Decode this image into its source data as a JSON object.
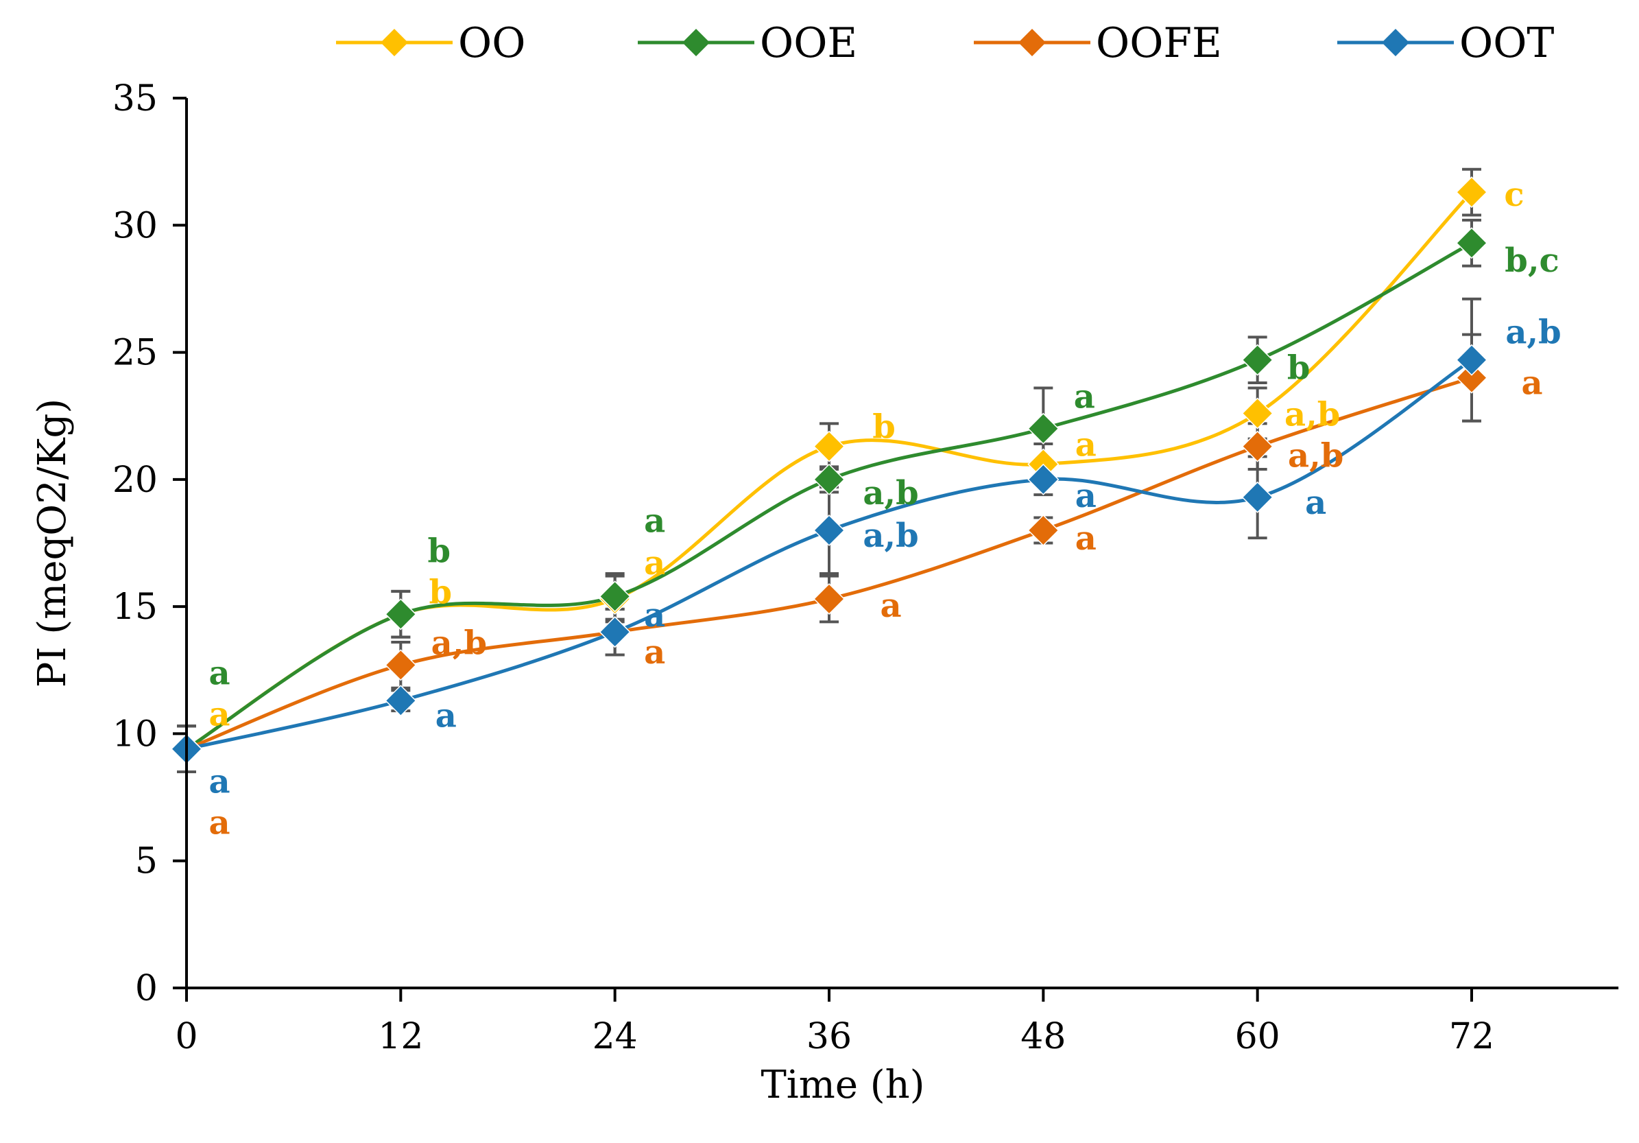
{
  "chart_data": {
    "type": "line",
    "title": "",
    "xlabel": "Time (h)",
    "ylabel": "PI (meqO2/Kg)",
    "x": [
      0,
      12,
      24,
      36,
      48,
      60,
      72
    ],
    "xlim": [
      0,
      80
    ],
    "ylim": [
      0,
      35
    ],
    "y_ticks": [
      0,
      5,
      10,
      15,
      20,
      25,
      30,
      35
    ],
    "grid": false,
    "legend_position": "top",
    "series": [
      {
        "name": "OO",
        "color": "#FFC000",
        "values": [
          9.4,
          14.7,
          15.3,
          21.3,
          20.6,
          22.6,
          31.3
        ],
        "errors": [
          0.9,
          0.9,
          0.9,
          0.9,
          0.8,
          1.0,
          0.9
        ],
        "letters": [
          "a",
          "b",
          "a",
          "b",
          "a",
          "a,b",
          "c"
        ]
      },
      {
        "name": "OOE",
        "color": "#2E8B2E",
        "values": [
          9.4,
          14.7,
          15.4,
          20.0,
          22.0,
          24.7,
          29.3
        ],
        "errors": [
          0.9,
          0.9,
          0.9,
          0.5,
          1.6,
          0.9,
          0.9
        ],
        "letters": [
          "a",
          "b",
          "a",
          "a,b",
          "a",
          "b",
          "b,c"
        ]
      },
      {
        "name": "OOFE",
        "color": "#E36C09",
        "values": [
          9.4,
          12.7,
          14.0,
          15.3,
          18.0,
          21.3,
          24.0
        ],
        "errors": [
          0.9,
          0.9,
          0.9,
          0.9,
          0.5,
          0.9,
          1.7
        ],
        "letters": [
          "a",
          "a,b",
          "a",
          "a",
          "a",
          "a,b",
          "a"
        ]
      },
      {
        "name": "OOT",
        "color": "#1F77B4",
        "values": [
          9.4,
          11.3,
          14.0,
          18.0,
          20.0,
          19.3,
          24.7
        ],
        "errors": [
          0.9,
          0.4,
          0.9,
          1.7,
          0.6,
          1.6,
          2.4
        ],
        "letters": [
          "a",
          "a",
          "a",
          "a,b",
          "a",
          "a",
          "a,b"
        ]
      }
    ]
  }
}
